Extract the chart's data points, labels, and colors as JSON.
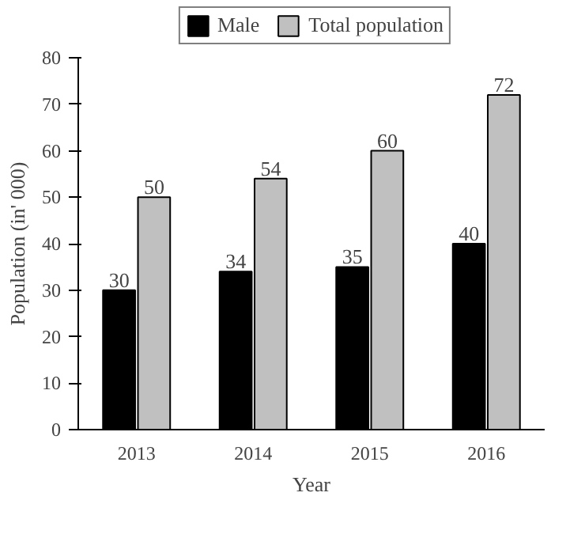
{
  "chart_data": {
    "type": "bar",
    "xlabel": "Year",
    "ylabel": "Population (in' 000)",
    "categories": [
      "2013",
      "2014",
      "2015",
      "2016"
    ],
    "series": [
      {
        "name": "Male",
        "color": "#000000",
        "values": [
          30,
          34,
          35,
          40
        ]
      },
      {
        "name": "Total population",
        "color": "#c0c0c0",
        "values": [
          50,
          54,
          60,
          72
        ]
      }
    ],
    "ylim": [
      0,
      80
    ],
    "yticks": [
      0,
      10,
      20,
      30,
      40,
      50,
      60,
      70,
      80
    ],
    "grid": false,
    "legend": "top",
    "data_labels": true
  }
}
